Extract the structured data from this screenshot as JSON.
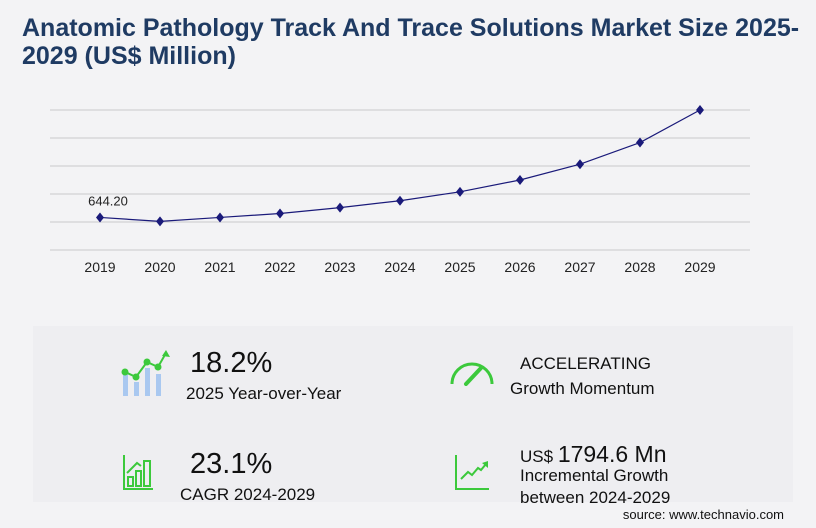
{
  "title": "Anatomic Pathology Track And Trace Solutions Market Size 2025-2029 (US$ Million)",
  "chart_data": {
    "type": "line",
    "categories": [
      "2019",
      "2020",
      "2021",
      "2022",
      "2023",
      "2024",
      "2025",
      "2026",
      "2027",
      "2028",
      "2029"
    ],
    "values": [
      644.2,
      566,
      644,
      722,
      839,
      975,
      1151,
      1385,
      1697,
      2126,
      2769.6
    ],
    "data_labels": {
      "0": "644.20"
    },
    "ylim": [
      0,
      2770
    ],
    "grid": true,
    "line_color": "#1a1a7a",
    "marker": "diamond"
  },
  "stats": {
    "yoy_value": "18.2%",
    "yoy_label": "2025 Year-over-Year",
    "momentum_value": "ACCELERATING",
    "momentum_label": "Growth Momentum",
    "cagr_value": "23.1%",
    "cagr_label": "CAGR 2024-2029",
    "incr_prefix": "US$",
    "incr_value": "1794.6 Mn",
    "incr_label1": "Incremental Growth",
    "incr_label2": "between 2024-2029"
  },
  "source": "source: www.technavio.com",
  "colors": {
    "accent_green": "#3cc93c",
    "title": "#1f3b63",
    "bar_blue": "#a9c8f0"
  }
}
